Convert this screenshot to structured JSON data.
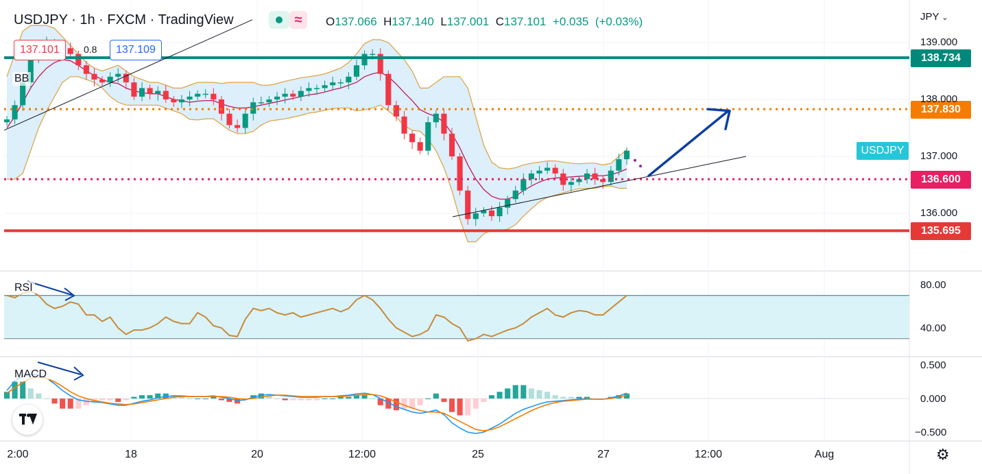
{
  "header": {
    "symbol": "USDJPY",
    "interval": "1h",
    "exchange": "FXCM",
    "platform": "TradingView",
    "separator": "·",
    "ohlc": {
      "o_label": "O",
      "open": "137.066",
      "h_label": "H",
      "high": "137.140",
      "l_label": "L",
      "low": "137.001",
      "c_label": "C",
      "close": "137.101",
      "change": "+0.035",
      "change_pct": "(+0.03%)"
    },
    "bid": "137.101",
    "ask": "137.109",
    "spread": "0.8",
    "currency_menu": "JPY"
  },
  "colors": {
    "up": "#089981",
    "down": "#f23645",
    "bb_basis": "#c2185b",
    "bb_band": "#e0a040",
    "bb_fill": "#d6ecfa",
    "rsi_line": "#c88a3a",
    "rsi_fill": "#d9f3f8",
    "macd_line": "#2196f3",
    "signal_line": "#f57c00",
    "arrow": "#0d3fa0",
    "level_teal": "#00897b",
    "level_orange": "#f57c00",
    "level_pink": "#e91e63",
    "level_red": "#e53935",
    "symbol_tag": "#26c6da"
  },
  "icons": [
    "chevron-down-icon",
    "eye-dot-icon",
    "wave-icon",
    "tradingview-logo-icon",
    "gear-icon"
  ],
  "chart_data": [
    {
      "type": "line",
      "pane": "price",
      "indicator_label": "BB",
      "y_ticks": [
        "139.000",
        "138.000",
        "137.000",
        "136.000"
      ],
      "ylim": [
        135.25,
        139.3
      ],
      "x_ticks": [
        "2:00",
        "18",
        "20",
        "12:00",
        "25",
        "27",
        "12:00",
        "Aug"
      ],
      "price_levels": [
        {
          "value": 138.734,
          "label": "138.734",
          "style": "solid",
          "color": "#00897b"
        },
        {
          "value": 137.83,
          "label": "137.830",
          "style": "dotted",
          "color": "#f57c00"
        },
        {
          "value": 136.6,
          "label": "136.600",
          "style": "dotted",
          "color": "#e91e63"
        },
        {
          "value": 135.695,
          "label": "135.695",
          "style": "solid",
          "color": "#e53935"
        }
      ],
      "symbol_tag": "USDJPY",
      "symbol_tag_value": 137.1,
      "close_series": [
        137.65,
        137.9,
        138.3,
        138.7,
        138.9,
        139.0,
        138.95,
        138.9,
        138.8,
        138.6,
        138.45,
        138.35,
        138.3,
        138.4,
        138.45,
        138.3,
        138.05,
        138.2,
        138.1,
        138.15,
        138.0,
        137.95,
        138.0,
        138.05,
        138.1,
        138.1,
        138.0,
        137.75,
        137.55,
        137.5,
        137.75,
        137.95,
        137.95,
        138.0,
        138.05,
        138.1,
        138.05,
        138.15,
        138.2,
        138.2,
        138.25,
        138.3,
        138.3,
        138.4,
        138.6,
        138.8,
        138.8,
        138.45,
        137.9,
        137.7,
        137.4,
        137.25,
        137.1,
        137.6,
        137.75,
        137.4,
        137.0,
        136.4,
        135.9,
        136.0,
        136.05,
        135.95,
        136.1,
        136.25,
        136.4,
        136.6,
        136.7,
        136.75,
        136.8,
        136.7,
        136.5,
        136.55,
        136.6,
        136.7,
        136.6,
        136.55,
        136.75,
        136.95,
        137.1
      ],
      "bb_basis": [
        137.5,
        137.7,
        137.95,
        138.2,
        138.4,
        138.55,
        138.65,
        138.7,
        138.68,
        138.6,
        138.5,
        138.42,
        138.35,
        138.3,
        138.28,
        138.2,
        138.15,
        138.12,
        138.1,
        138.1,
        138.05,
        138.0,
        137.98,
        137.95,
        137.97,
        137.98,
        137.98,
        137.92,
        137.88,
        137.85,
        137.85,
        137.87,
        137.9,
        137.93,
        137.96,
        137.99,
        138.02,
        138.05,
        138.08,
        138.1,
        138.13,
        138.17,
        138.2,
        138.25,
        138.3,
        138.4,
        138.45,
        138.48,
        138.4,
        138.27,
        138.12,
        137.98,
        137.82,
        137.75,
        137.7,
        137.6,
        137.4,
        137.15,
        136.85,
        136.6,
        136.42,
        136.3,
        136.25,
        136.25,
        136.3,
        136.4,
        136.48,
        136.55,
        136.6,
        136.62,
        136.63,
        136.64,
        136.65,
        136.66,
        136.66,
        136.66,
        136.68,
        136.72,
        136.78
      ],
      "bb_upper": [
        138.4,
        138.8,
        139.2,
        139.3,
        139.3,
        139.3,
        139.25,
        139.1,
        138.95,
        138.8,
        138.65,
        138.55,
        138.5,
        138.55,
        138.6,
        138.5,
        138.4,
        138.35,
        138.3,
        138.3,
        138.25,
        138.2,
        138.2,
        138.25,
        138.3,
        138.3,
        138.3,
        138.28,
        138.3,
        138.3,
        138.3,
        138.3,
        138.25,
        138.25,
        138.28,
        138.32,
        138.35,
        138.38,
        138.4,
        138.42,
        138.45,
        138.5,
        138.55,
        138.65,
        138.8,
        138.98,
        139.05,
        139.05,
        139.0,
        138.85,
        138.7,
        138.5,
        138.2,
        138.2,
        138.3,
        138.4,
        138.4,
        138.4,
        138.2,
        137.7,
        137.2,
        136.9,
        136.8,
        136.78,
        136.8,
        136.85,
        136.88,
        136.9,
        136.92,
        136.92,
        136.9,
        136.88,
        136.87,
        136.88,
        136.88,
        136.85,
        136.88,
        137.0,
        137.12
      ],
      "bb_lower": [
        136.6,
        136.6,
        136.7,
        137.1,
        137.5,
        137.8,
        138.05,
        138.3,
        138.4,
        138.4,
        138.35,
        138.3,
        138.2,
        138.05,
        137.95,
        137.9,
        137.9,
        137.9,
        137.9,
        137.9,
        137.85,
        137.8,
        137.75,
        137.65,
        137.64,
        137.66,
        137.66,
        137.56,
        137.46,
        137.4,
        137.4,
        137.44,
        137.55,
        137.62,
        137.64,
        137.66,
        137.69,
        137.72,
        137.76,
        137.78,
        137.81,
        137.84,
        137.85,
        137.85,
        137.8,
        137.82,
        137.85,
        137.9,
        137.8,
        137.69,
        137.54,
        137.46,
        137.44,
        137.3,
        137.1,
        136.8,
        136.4,
        135.9,
        135.5,
        135.5,
        135.64,
        135.7,
        135.7,
        135.72,
        135.8,
        135.95,
        136.08,
        136.2,
        136.28,
        136.32,
        136.36,
        136.4,
        136.43,
        136.44,
        136.44,
        136.47,
        136.48,
        136.44,
        136.44
      ]
    },
    {
      "type": "line",
      "pane": "rsi",
      "indicator_label": "RSI",
      "y_ticks": [
        "80.00",
        "40.00"
      ],
      "ylim": [
        20,
        92
      ],
      "band": [
        30,
        70
      ],
      "values": [
        70,
        68,
        72,
        74,
        70,
        62,
        58,
        60,
        64,
        62,
        52,
        52,
        46,
        50,
        40,
        34,
        38,
        38,
        40,
        44,
        50,
        46,
        44,
        44,
        54,
        50,
        42,
        40,
        33,
        32,
        48,
        58,
        56,
        58,
        54,
        52,
        54,
        50,
        52,
        54,
        56,
        58,
        55,
        58,
        66,
        70,
        66,
        58,
        48,
        40,
        36,
        32,
        34,
        38,
        52,
        50,
        44,
        40,
        28,
        30,
        34,
        32,
        35,
        38,
        40,
        44,
        50,
        54,
        58,
        52,
        50,
        54,
        56,
        55,
        52,
        52,
        58,
        64,
        70
      ]
    },
    {
      "type": "bar",
      "pane": "macd",
      "indicator_label": "MACD",
      "y_ticks": [
        "0.500",
        "0.000",
        "−0.500"
      ],
      "ylim": [
        -0.58,
        0.62
      ],
      "macd": [
        0.12,
        0.26,
        0.34,
        0.36,
        0.35,
        0.3,
        0.22,
        0.12,
        0.04,
        -0.02,
        -0.04,
        -0.05,
        -0.06,
        -0.08,
        -0.1,
        -0.1,
        -0.07,
        -0.04,
        -0.02,
        0.01,
        0.03,
        0.04,
        0.04,
        0.03,
        0.03,
        0.03,
        0.04,
        0.02,
        0.0,
        -0.03,
        -0.02,
        0.02,
        0.05,
        0.06,
        0.05,
        0.04,
        0.03,
        0.02,
        0.02,
        0.02,
        0.03,
        0.03,
        0.04,
        0.05,
        0.07,
        0.08,
        0.06,
        0.0,
        -0.06,
        -0.12,
        -0.16,
        -0.2,
        -0.22,
        -0.2,
        -0.17,
        -0.24,
        -0.36,
        -0.44,
        -0.5,
        -0.52,
        -0.5,
        -0.44,
        -0.38,
        -0.3,
        -0.22,
        -0.16,
        -0.12,
        -0.08,
        -0.05,
        -0.04,
        -0.03,
        -0.02,
        -0.01,
        0.0,
        -0.01,
        -0.01,
        0.01,
        0.04,
        0.08
      ],
      "signal": [
        0.08,
        0.16,
        0.24,
        0.3,
        0.32,
        0.3,
        0.25,
        0.18,
        0.1,
        0.04,
        0.0,
        -0.03,
        -0.05,
        -0.07,
        -0.08,
        -0.09,
        -0.08,
        -0.06,
        -0.04,
        -0.02,
        0.0,
        0.02,
        0.03,
        0.03,
        0.03,
        0.03,
        0.03,
        0.03,
        0.02,
        0.0,
        -0.01,
        0.0,
        0.02,
        0.04,
        0.05,
        0.05,
        0.04,
        0.03,
        0.03,
        0.03,
        0.03,
        0.03,
        0.03,
        0.04,
        0.05,
        0.06,
        0.06,
        0.04,
        0.0,
        -0.05,
        -0.1,
        -0.14,
        -0.18,
        -0.2,
        -0.2,
        -0.22,
        -0.28,
        -0.34,
        -0.4,
        -0.46,
        -0.48,
        -0.46,
        -0.42,
        -0.36,
        -0.3,
        -0.24,
        -0.18,
        -0.13,
        -0.09,
        -0.06,
        -0.04,
        -0.03,
        -0.02,
        -0.01,
        -0.01,
        -0.01,
        0.0,
        0.02,
        0.05
      ]
    }
  ]
}
